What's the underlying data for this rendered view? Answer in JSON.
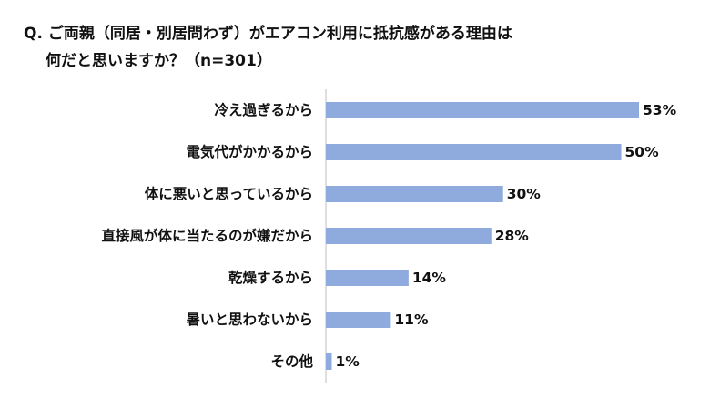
{
  "title": {
    "line1": "Q. ご両親（同居・別居問わず）がエアコン利用に抵抗感がある理由は",
    "line2": "何だと思いますか？（n=301）"
  },
  "colors": {
    "bar": "#8faadc",
    "axis": "#bfbfbf",
    "text": "#111111"
  },
  "chart_data": {
    "type": "bar",
    "orientation": "horizontal",
    "unit": "%",
    "categories": [
      "冷え過ぎるから",
      "電気代がかかるから",
      "体に悪いと思っているから",
      "直接風が体に当たるのが嫌だから",
      "乾燥するから",
      "暑いと思わないから",
      "その他"
    ],
    "values": [
      53,
      50,
      30,
      28,
      14,
      11,
      1
    ],
    "labels": [
      "53%",
      "50%",
      "30%",
      "28%",
      "14%",
      "11%",
      "1%"
    ],
    "xlim": [
      0,
      53
    ],
    "grid": false,
    "legend": "none"
  }
}
